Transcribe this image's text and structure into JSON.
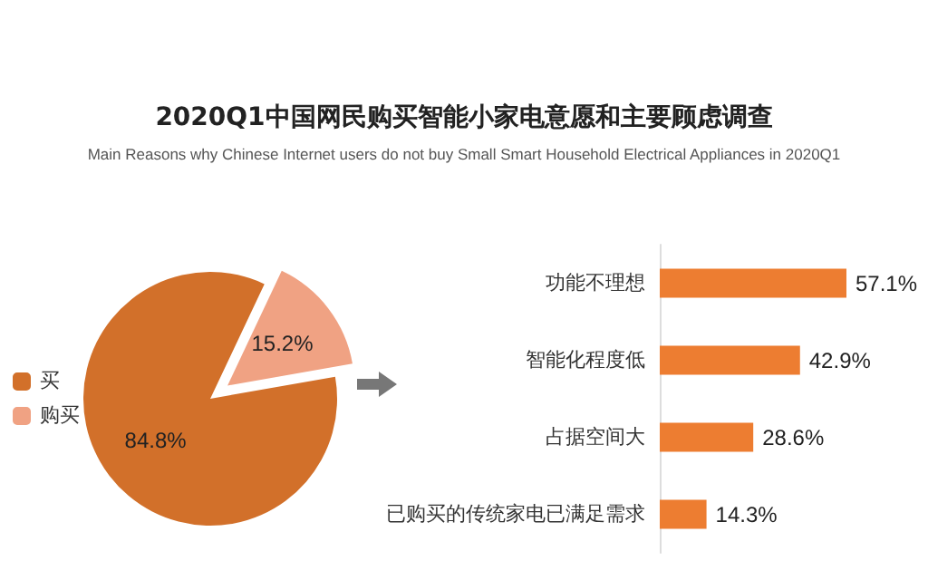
{
  "chart_data": [
    {
      "type": "pie",
      "title": "2020Q1中国网民购买智能小家电意愿和主要顾虑调查",
      "subtitle": "Main Reasons why Chinese Internet users do not buy Small Smart Household Electrical Appliances  in 2020Q1",
      "categories": [
        "买",
        "购买"
      ],
      "values": [
        84.8,
        15.2
      ],
      "colors": [
        "#d2702a",
        "#f0a283"
      ],
      "value_labels": [
        "84.8%",
        "15.2%"
      ],
      "legend": "left"
    },
    {
      "type": "bar",
      "orientation": "horizontal",
      "categories": [
        "功能不理想",
        "智能化程度低",
        "占据空间大",
        "已购买的传统家电已满足需求"
      ],
      "values": [
        57.1,
        42.9,
        28.6,
        14.3
      ],
      "color": "#ed7d31",
      "value_labels": [
        "57.1%",
        "42.9%",
        "28.6%",
        "14.3%"
      ],
      "tick_labels": false
    }
  ]
}
